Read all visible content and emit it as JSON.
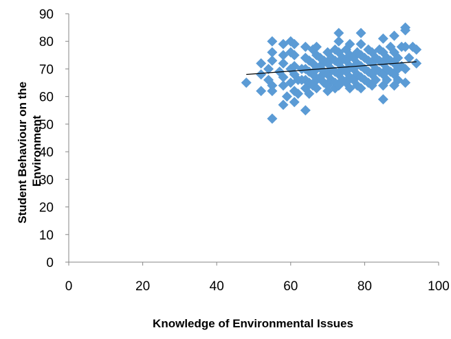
{
  "chart_data": {
    "type": "scatter",
    "title": "",
    "xlabel": "Knowledge of Environmental Issues",
    "ylabel_lines": [
      "Student Behaviour on the",
      "Environment"
    ],
    "xlim": [
      0,
      100
    ],
    "ylim": [
      0,
      90
    ],
    "x_ticks": [
      0,
      20,
      40,
      60,
      80,
      100
    ],
    "y_ticks": [
      0,
      10,
      20,
      30,
      40,
      50,
      60,
      70,
      80,
      90
    ],
    "grid": false,
    "legend": "none",
    "marker": "diamond",
    "marker_color": "#5b9bd5",
    "trendline": {
      "type": "linear",
      "x": [
        48,
        94
      ],
      "y": [
        68,
        72.6
      ],
      "color": "#000000"
    },
    "points": [
      [
        48,
        65
      ],
      [
        52,
        72
      ],
      [
        52,
        68
      ],
      [
        52,
        62
      ],
      [
        54,
        70
      ],
      [
        54,
        66
      ],
      [
        55,
        80
      ],
      [
        55,
        76
      ],
      [
        55,
        73
      ],
      [
        55,
        64
      ],
      [
        55,
        62
      ],
      [
        55,
        52
      ],
      [
        57,
        69
      ],
      [
        58,
        79
      ],
      [
        58,
        75
      ],
      [
        58,
        72
      ],
      [
        58,
        67
      ],
      [
        58,
        64
      ],
      [
        58,
        57
      ],
      [
        59,
        60
      ],
      [
        60,
        80
      ],
      [
        60,
        76
      ],
      [
        60,
        70
      ],
      [
        60,
        65
      ],
      [
        61,
        79
      ],
      [
        61,
        75
      ],
      [
        61,
        71
      ],
      [
        61,
        68
      ],
      [
        61,
        62
      ],
      [
        61,
        58
      ],
      [
        62,
        66
      ],
      [
        62,
        61
      ],
      [
        63,
        70
      ],
      [
        63,
        66
      ],
      [
        64,
        78
      ],
      [
        64,
        74
      ],
      [
        64,
        70
      ],
      [
        64,
        66
      ],
      [
        64,
        63
      ],
      [
        64,
        55
      ],
      [
        65,
        73
      ],
      [
        65,
        69
      ],
      [
        65,
        65
      ],
      [
        65,
        61
      ],
      [
        66,
        77
      ],
      [
        66,
        72
      ],
      [
        66,
        68
      ],
      [
        66,
        64
      ],
      [
        67,
        78
      ],
      [
        67,
        75
      ],
      [
        67,
        70
      ],
      [
        67,
        66
      ],
      [
        67,
        63
      ],
      [
        68,
        74
      ],
      [
        68,
        71
      ],
      [
        68,
        67
      ],
      [
        69,
        73
      ],
      [
        69,
        69
      ],
      [
        69,
        65
      ],
      [
        70,
        76
      ],
      [
        70,
        72
      ],
      [
        70,
        68
      ],
      [
        70,
        64
      ],
      [
        70,
        62
      ],
      [
        71,
        74
      ],
      [
        71,
        70
      ],
      [
        71,
        66
      ],
      [
        72,
        77
      ],
      [
        72,
        73
      ],
      [
        72,
        69
      ],
      [
        72,
        65
      ],
      [
        72,
        63
      ],
      [
        73,
        83
      ],
      [
        73,
        80
      ],
      [
        73,
        76
      ],
      [
        73,
        72
      ],
      [
        73,
        68
      ],
      [
        73,
        64
      ],
      [
        74,
        74
      ],
      [
        74,
        70
      ],
      [
        74,
        66
      ],
      [
        75,
        77
      ],
      [
        75,
        73
      ],
      [
        75,
        69
      ],
      [
        75,
        65
      ],
      [
        76,
        79
      ],
      [
        76,
        75
      ],
      [
        76,
        71
      ],
      [
        76,
        67
      ],
      [
        76,
        63
      ],
      [
        77,
        74
      ],
      [
        77,
        70
      ],
      [
        77,
        66
      ],
      [
        78,
        76
      ],
      [
        78,
        72
      ],
      [
        78,
        68
      ],
      [
        78,
        64
      ],
      [
        79,
        83
      ],
      [
        79,
        79
      ],
      [
        79,
        75
      ],
      [
        79,
        71
      ],
      [
        79,
        67
      ],
      [
        79,
        63
      ],
      [
        80,
        74
      ],
      [
        80,
        70
      ],
      [
        80,
        66
      ],
      [
        81,
        77
      ],
      [
        81,
        73
      ],
      [
        81,
        69
      ],
      [
        81,
        65
      ],
      [
        82,
        76
      ],
      [
        82,
        72
      ],
      [
        82,
        68
      ],
      [
        82,
        64
      ],
      [
        83,
        74
      ],
      [
        83,
        70
      ],
      [
        83,
        66
      ],
      [
        84,
        77
      ],
      [
        84,
        73
      ],
      [
        84,
        69
      ],
      [
        85,
        81
      ],
      [
        85,
        76
      ],
      [
        85,
        72
      ],
      [
        85,
        68
      ],
      [
        85,
        64
      ],
      [
        85,
        59
      ],
      [
        86,
        74
      ],
      [
        86,
        70
      ],
      [
        86,
        66
      ],
      [
        87,
        78
      ],
      [
        87,
        73
      ],
      [
        87,
        69
      ],
      [
        88,
        82
      ],
      [
        88,
        76
      ],
      [
        88,
        72
      ],
      [
        88,
        68
      ],
      [
        88,
        64
      ],
      [
        89,
        74
      ],
      [
        89,
        70
      ],
      [
        89,
        66
      ],
      [
        90,
        78
      ],
      [
        90,
        71
      ],
      [
        91,
        85
      ],
      [
        91,
        84
      ],
      [
        91,
        78
      ],
      [
        91,
        70
      ],
      [
        91,
        65
      ],
      [
        92,
        74
      ],
      [
        93,
        78
      ],
      [
        94,
        77
      ],
      [
        94,
        72
      ]
    ]
  }
}
